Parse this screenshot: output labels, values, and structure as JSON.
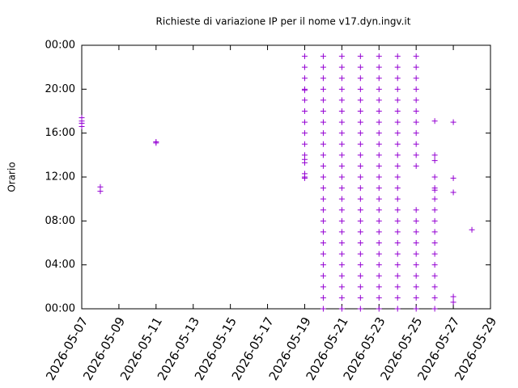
{
  "chart_data": {
    "type": "scatter",
    "title": "Richieste di variazione IP per il nome v17.dyn.ingv.it",
    "y_label": "Orario",
    "marker": "+",
    "xlim": [
      "2026-05-07",
      "2026-05-29"
    ],
    "xticks": [
      "2026-05-07",
      "2026-05-09",
      "2026-05-11",
      "2026-05-13",
      "2026-05-15",
      "2026-05-17",
      "2026-05-19",
      "2026-05-21",
      "2026-05-23",
      "2026-05-25",
      "2026-05-27",
      "2026-05-29"
    ],
    "ylim": [
      0,
      24
    ],
    "yticks": [
      {
        "value": 0,
        "label": "00:00"
      },
      {
        "value": 4,
        "label": "04:00"
      },
      {
        "value": 8,
        "label": "08:00"
      },
      {
        "value": 12,
        "label": "12:00"
      },
      {
        "value": 16,
        "label": "16:00"
      },
      {
        "value": 20,
        "label": "20:00"
      },
      {
        "value": 24,
        "label": "00:00"
      }
    ],
    "x": [
      "2026-05-07",
      "2026-05-07",
      "2026-05-07",
      "2026-05-07",
      "2026-05-08",
      "2026-05-08",
      "2026-05-11",
      "2026-05-11",
      "2026-05-19",
      "2026-05-19",
      "2026-05-19",
      "2026-05-19",
      "2026-05-19",
      "2026-05-19",
      "2026-05-19",
      "2026-05-19",
      "2026-05-19",
      "2026-05-19",
      "2026-05-19",
      "2026-05-19",
      "2026-05-19",
      "2026-05-19",
      "2026-05-19",
      "2026-05-19",
      "2026-05-20",
      "2026-05-20",
      "2026-05-20",
      "2026-05-20",
      "2026-05-20",
      "2026-05-20",
      "2026-05-20",
      "2026-05-20",
      "2026-05-20",
      "2026-05-20",
      "2026-05-20",
      "2026-05-20",
      "2026-05-20",
      "2026-05-20",
      "2026-05-20",
      "2026-05-20",
      "2026-05-20",
      "2026-05-20",
      "2026-05-20",
      "2026-05-20",
      "2026-05-20",
      "2026-05-20",
      "2026-05-20",
      "2026-05-20",
      "2026-05-21",
      "2026-05-21",
      "2026-05-21",
      "2026-05-21",
      "2026-05-21",
      "2026-05-21",
      "2026-05-21",
      "2026-05-21",
      "2026-05-21",
      "2026-05-21",
      "2026-05-21",
      "2026-05-21",
      "2026-05-21",
      "2026-05-21",
      "2026-05-21",
      "2026-05-21",
      "2026-05-21",
      "2026-05-21",
      "2026-05-21",
      "2026-05-21",
      "2026-05-21",
      "2026-05-21",
      "2026-05-21",
      "2026-05-21",
      "2026-05-22",
      "2026-05-22",
      "2026-05-22",
      "2026-05-22",
      "2026-05-22",
      "2026-05-22",
      "2026-05-22",
      "2026-05-22",
      "2026-05-22",
      "2026-05-22",
      "2026-05-22",
      "2026-05-22",
      "2026-05-22",
      "2026-05-22",
      "2026-05-22",
      "2026-05-22",
      "2026-05-22",
      "2026-05-22",
      "2026-05-22",
      "2026-05-22",
      "2026-05-22",
      "2026-05-22",
      "2026-05-22",
      "2026-05-22",
      "2026-05-23",
      "2026-05-23",
      "2026-05-23",
      "2026-05-23",
      "2026-05-23",
      "2026-05-23",
      "2026-05-23",
      "2026-05-23",
      "2026-05-23",
      "2026-05-23",
      "2026-05-23",
      "2026-05-23",
      "2026-05-23",
      "2026-05-23",
      "2026-05-23",
      "2026-05-23",
      "2026-05-23",
      "2026-05-23",
      "2026-05-23",
      "2026-05-23",
      "2026-05-23",
      "2026-05-23",
      "2026-05-23",
      "2026-05-23",
      "2026-05-24",
      "2026-05-24",
      "2026-05-24",
      "2026-05-24",
      "2026-05-24",
      "2026-05-24",
      "2026-05-24",
      "2026-05-24",
      "2026-05-24",
      "2026-05-24",
      "2026-05-24",
      "2026-05-24",
      "2026-05-24",
      "2026-05-24",
      "2026-05-24",
      "2026-05-24",
      "2026-05-24",
      "2026-05-24",
      "2026-05-24",
      "2026-05-24",
      "2026-05-24",
      "2026-05-24",
      "2026-05-24",
      "2026-05-24",
      "2026-05-25",
      "2026-05-25",
      "2026-05-25",
      "2026-05-25",
      "2026-05-25",
      "2026-05-25",
      "2026-05-25",
      "2026-05-25",
      "2026-05-25",
      "2026-05-25",
      "2026-05-25",
      "2026-05-25",
      "2026-05-25",
      "2026-05-25",
      "2026-05-25",
      "2026-05-25",
      "2026-05-25",
      "2026-05-25",
      "2026-05-25",
      "2026-05-25",
      "2026-05-25",
      "2026-05-26",
      "2026-05-26",
      "2026-05-26",
      "2026-05-26",
      "2026-05-26",
      "2026-05-26",
      "2026-05-26",
      "2026-05-26",
      "2026-05-26",
      "2026-05-26",
      "2026-05-26",
      "2026-05-26",
      "2026-05-26",
      "2026-05-26",
      "2026-05-26",
      "2026-05-26",
      "2026-05-26",
      "2026-05-27",
      "2026-05-27",
      "2026-05-27",
      "2026-05-27",
      "2026-05-27",
      "2026-05-28"
    ],
    "series": [
      {
        "color": "#9400d3",
        "values": [
          17.4,
          17.1,
          16.9,
          16.6,
          11.1,
          10.7,
          15.2,
          15.1,
          23,
          22,
          21,
          20,
          19.9,
          19,
          18,
          17,
          16,
          15,
          14,
          13.6,
          13.3,
          12.3,
          12.0,
          11.9,
          0,
          1,
          2,
          3,
          4,
          5,
          6,
          7,
          8,
          9,
          10,
          11,
          12,
          13,
          14,
          15,
          16,
          17,
          18,
          19,
          20,
          21,
          22,
          23,
          0,
          1,
          2,
          3,
          4,
          5,
          6,
          7,
          8,
          9,
          10,
          11,
          12,
          13,
          14,
          15,
          16,
          17,
          18,
          19,
          20,
          21,
          22,
          23,
          0,
          1,
          2,
          3,
          4,
          5,
          6,
          7,
          8,
          9,
          10,
          11,
          12,
          13,
          14,
          15,
          16,
          17,
          18,
          19,
          20,
          21,
          22,
          23,
          0,
          1,
          2,
          3,
          4,
          5,
          6,
          7,
          8,
          9,
          10,
          11,
          12,
          13,
          14,
          15,
          16,
          17,
          18,
          19,
          20,
          21,
          22,
          23,
          0,
          1,
          2,
          3,
          4,
          5,
          6,
          7,
          8,
          9,
          10,
          11,
          12,
          13,
          14,
          15,
          16,
          17,
          18,
          19,
          20,
          21,
          22,
          23,
          0,
          1,
          2,
          3,
          4,
          5,
          6,
          7,
          8,
          9,
          13,
          14,
          15,
          16,
          17,
          18,
          19,
          20,
          21,
          22,
          23,
          0,
          1,
          2,
          3,
          4,
          5,
          6,
          7,
          8,
          9,
          10,
          10.8,
          11,
          12,
          13.5,
          14,
          17.1,
          0.6,
          1.1,
          10.6,
          11.9,
          17,
          7.2
        ]
      }
    ]
  }
}
